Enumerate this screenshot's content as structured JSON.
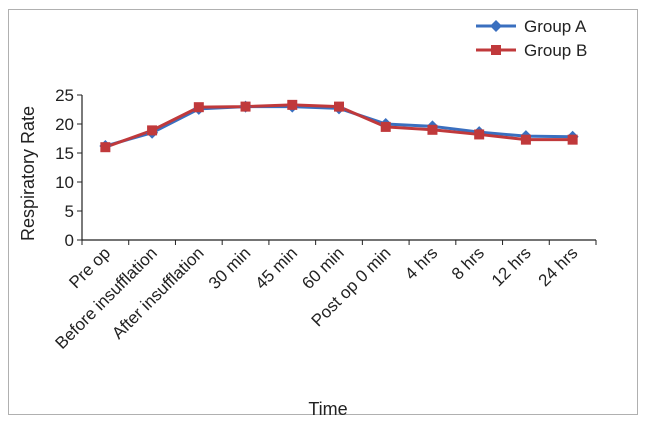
{
  "chart_data": {
    "type": "line",
    "categories": [
      "Pre op",
      "Before insufflation",
      "After insufflation",
      "30 min",
      "45 min",
      "60 min",
      "Post op 0 min",
      "4 hrs",
      "8 hrs",
      "12 hrs",
      "24 hrs"
    ],
    "series": [
      {
        "name": "Group A",
        "color": "#3a6fbf",
        "marker": "diamond",
        "values": [
          16.2,
          18.5,
          22.6,
          23.0,
          23.0,
          22.7,
          20.0,
          19.6,
          18.6,
          17.9,
          17.8
        ]
      },
      {
        "name": "Group B",
        "color": "#c0393b",
        "marker": "square",
        "values": [
          16.0,
          18.9,
          22.9,
          23.0,
          23.3,
          23.0,
          19.5,
          19.0,
          18.2,
          17.3,
          17.3
        ]
      }
    ],
    "xlabel": "Time",
    "ylabel": "Respiratory Rate",
    "ylim": [
      0,
      25
    ],
    "yticks": [
      0,
      5,
      10,
      15,
      20,
      25
    ],
    "grid": false,
    "legend_position": "top-right"
  }
}
